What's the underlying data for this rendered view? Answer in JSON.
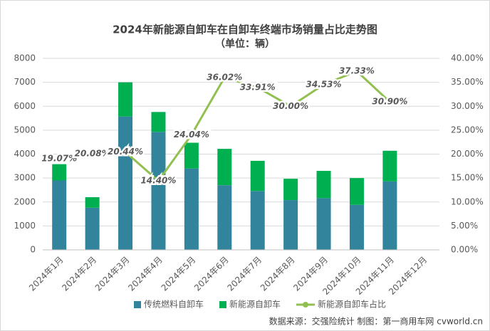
{
  "chart_data": {
    "type": "bar",
    "stacked": true,
    "title": "2024年新能源自卸车在自卸车终端市场销量占比走势图",
    "subtitle": "（单位：辆）",
    "categories": [
      "2024年1月",
      "2024年2月",
      "2024年3月",
      "2024年4月",
      "2024年5月",
      "2024年6月",
      "2024年7月",
      "2024年8月",
      "2024年9月",
      "2024年10月",
      "2024年11月",
      "2024年12月"
    ],
    "series": [
      {
        "name": "传统燃料自卸车",
        "color": "#31849b",
        "values": [
          2900,
          1760,
          5570,
          4930,
          3400,
          2700,
          2460,
          2080,
          2160,
          1880,
          2860,
          null
        ]
      },
      {
        "name": "新能源自卸车",
        "color": "#00b050",
        "values": [
          680,
          440,
          1430,
          830,
          1075,
          1520,
          1260,
          890,
          1140,
          1120,
          1280,
          null
        ]
      },
      {
        "name": "新能源自卸车占比",
        "type": "line",
        "axis": "y2",
        "color": "#92c050",
        "values": [
          19.07,
          20.08,
          20.44,
          14.4,
          24.04,
          36.02,
          33.91,
          30.0,
          34.53,
          37.33,
          30.9,
          null
        ],
        "value_labels": [
          "19.07%",
          "20.08%",
          "20.44%",
          "14.40%",
          "24.04%",
          "36.02%",
          "33.91%",
          "30.00%",
          "34.53%",
          "37.33%",
          "30.90%",
          null
        ]
      }
    ],
    "ylim": [
      0,
      8000
    ],
    "yticks": [
      0,
      1000,
      2000,
      3000,
      4000,
      5000,
      6000,
      7000,
      8000
    ],
    "y2lim": [
      0,
      40
    ],
    "y2ticks": [
      {
        "value": 0,
        "label": "0.00%"
      },
      {
        "value": 5,
        "label": "5.00%"
      },
      {
        "value": 10,
        "label": "10.00%"
      },
      {
        "value": 15,
        "label": "15.00%"
      },
      {
        "value": 20,
        "label": "20.00%"
      },
      {
        "value": 25,
        "label": "25.00%"
      },
      {
        "value": 30,
        "label": "30.00%"
      },
      {
        "value": 35,
        "label": "35.00%"
      },
      {
        "value": 40,
        "label": "40.00%"
      }
    ],
    "grid": true,
    "legend": "bottom",
    "source": "数据来源：交强险统计 制图：第一商用车网 cvworld.cn"
  }
}
